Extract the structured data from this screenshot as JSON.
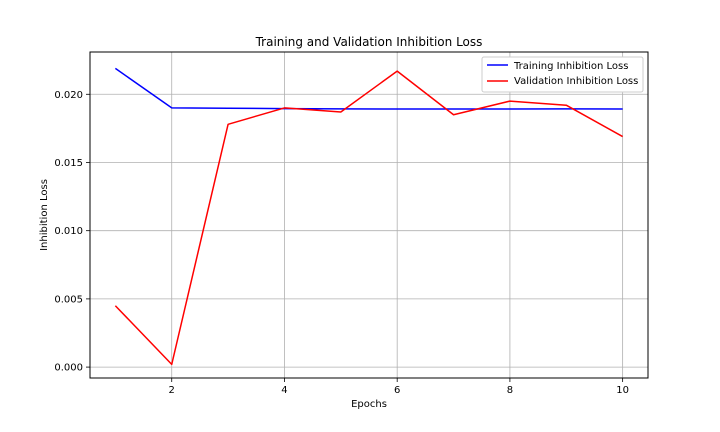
{
  "chart_data": {
    "type": "line",
    "title": "Training and Validation Inhibition Loss",
    "xlabel": "Epochs",
    "ylabel": "Inhibition Loss",
    "x": [
      1,
      2,
      3,
      4,
      5,
      6,
      7,
      8,
      9,
      10
    ],
    "xlim": [
      0.55,
      10.45
    ],
    "ylim": [
      -0.0008,
      0.0231
    ],
    "xticks": [
      2,
      4,
      6,
      8,
      10
    ],
    "xtick_labels": [
      "2",
      "4",
      "6",
      "8",
      "10"
    ],
    "yticks": [
      0.0,
      0.005,
      0.01,
      0.015,
      0.02
    ],
    "ytick_labels": [
      "0.000",
      "0.005",
      "0.010",
      "0.015",
      "0.020"
    ],
    "grid": true,
    "legend_position": "top-right",
    "series": [
      {
        "name": "Training Inhibition Loss",
        "color": "#0000ff",
        "values": [
          0.0219,
          0.019,
          0.01898,
          0.01895,
          0.01893,
          0.01892,
          0.01892,
          0.01892,
          0.01893,
          0.01892
        ]
      },
      {
        "name": "Validation Inhibition Loss",
        "color": "#ff0000",
        "values": [
          0.0045,
          0.0002,
          0.0178,
          0.019,
          0.0187,
          0.0217,
          0.0185,
          0.0195,
          0.0192,
          0.0169
        ]
      }
    ]
  }
}
